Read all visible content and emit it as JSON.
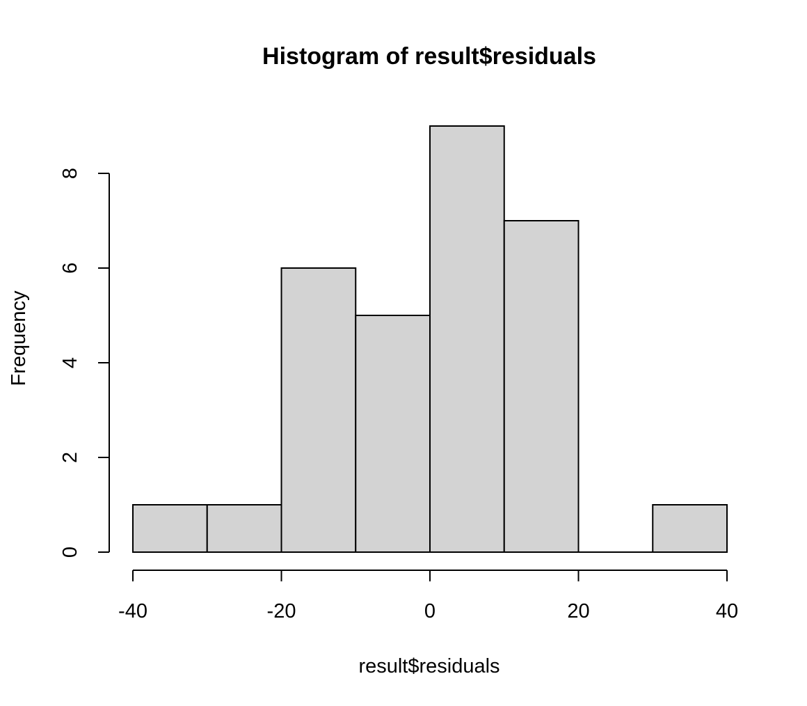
{
  "chart_data": {
    "type": "bar",
    "title": "Histogram of result$residuals",
    "xlabel": "result$residuals",
    "ylabel": "Frequency",
    "bins": [
      {
        "from": -40,
        "to": -30,
        "count": 1
      },
      {
        "from": -30,
        "to": -20,
        "count": 1
      },
      {
        "from": -20,
        "to": -10,
        "count": 6
      },
      {
        "from": -10,
        "to": 0,
        "count": 5
      },
      {
        "from": 0,
        "to": 10,
        "count": 9
      },
      {
        "from": 10,
        "to": 20,
        "count": 7
      },
      {
        "from": 20,
        "to": 30,
        "count": 0
      },
      {
        "from": 30,
        "to": 40,
        "count": 1
      }
    ],
    "xlim": [
      -40,
      40
    ],
    "ylim": [
      0,
      9
    ],
    "xticks": [
      -40,
      -20,
      0,
      20,
      40
    ],
    "yticks": [
      0,
      2,
      4,
      6,
      8
    ],
    "xtick_labels": [
      "-40",
      "-20",
      "0",
      "20",
      "40"
    ],
    "ytick_labels": [
      "0",
      "2",
      "4",
      "6",
      "8"
    ],
    "grid": false,
    "legend": "none",
    "bar_fill": "#d3d3d3",
    "bar_stroke": "#000000"
  }
}
